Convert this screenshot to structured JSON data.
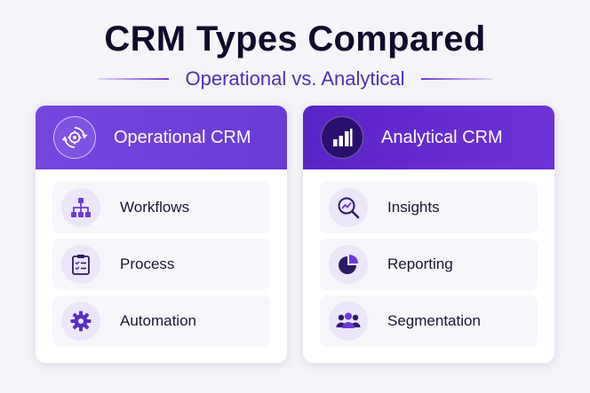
{
  "title": "CRM Types Compared",
  "subtitle": "Operational vs. Analytical",
  "colors": {
    "accent": "#6d3ad6",
    "header_left": "#7646e0",
    "header_right": "#5b24c8",
    "item_bg": "#f7f6fa",
    "icon_bg": "#ece6f9"
  },
  "cards": [
    {
      "title": "Operational CRM",
      "icon": "gear-cycle-icon",
      "items": [
        {
          "label": "Workflows",
          "icon": "workflow-icon"
        },
        {
          "label": "Process",
          "icon": "clipboard-checklist-icon"
        },
        {
          "label": "Automation",
          "icon": "gear-icon"
        }
      ]
    },
    {
      "title": "Analytical CRM",
      "icon": "bar-chart-icon",
      "items": [
        {
          "label": "Insights",
          "icon": "magnify-trend-icon"
        },
        {
          "label": "Reporting",
          "icon": "pie-chart-icon"
        },
        {
          "label": "Segmentation",
          "icon": "people-group-icon"
        }
      ]
    }
  ]
}
